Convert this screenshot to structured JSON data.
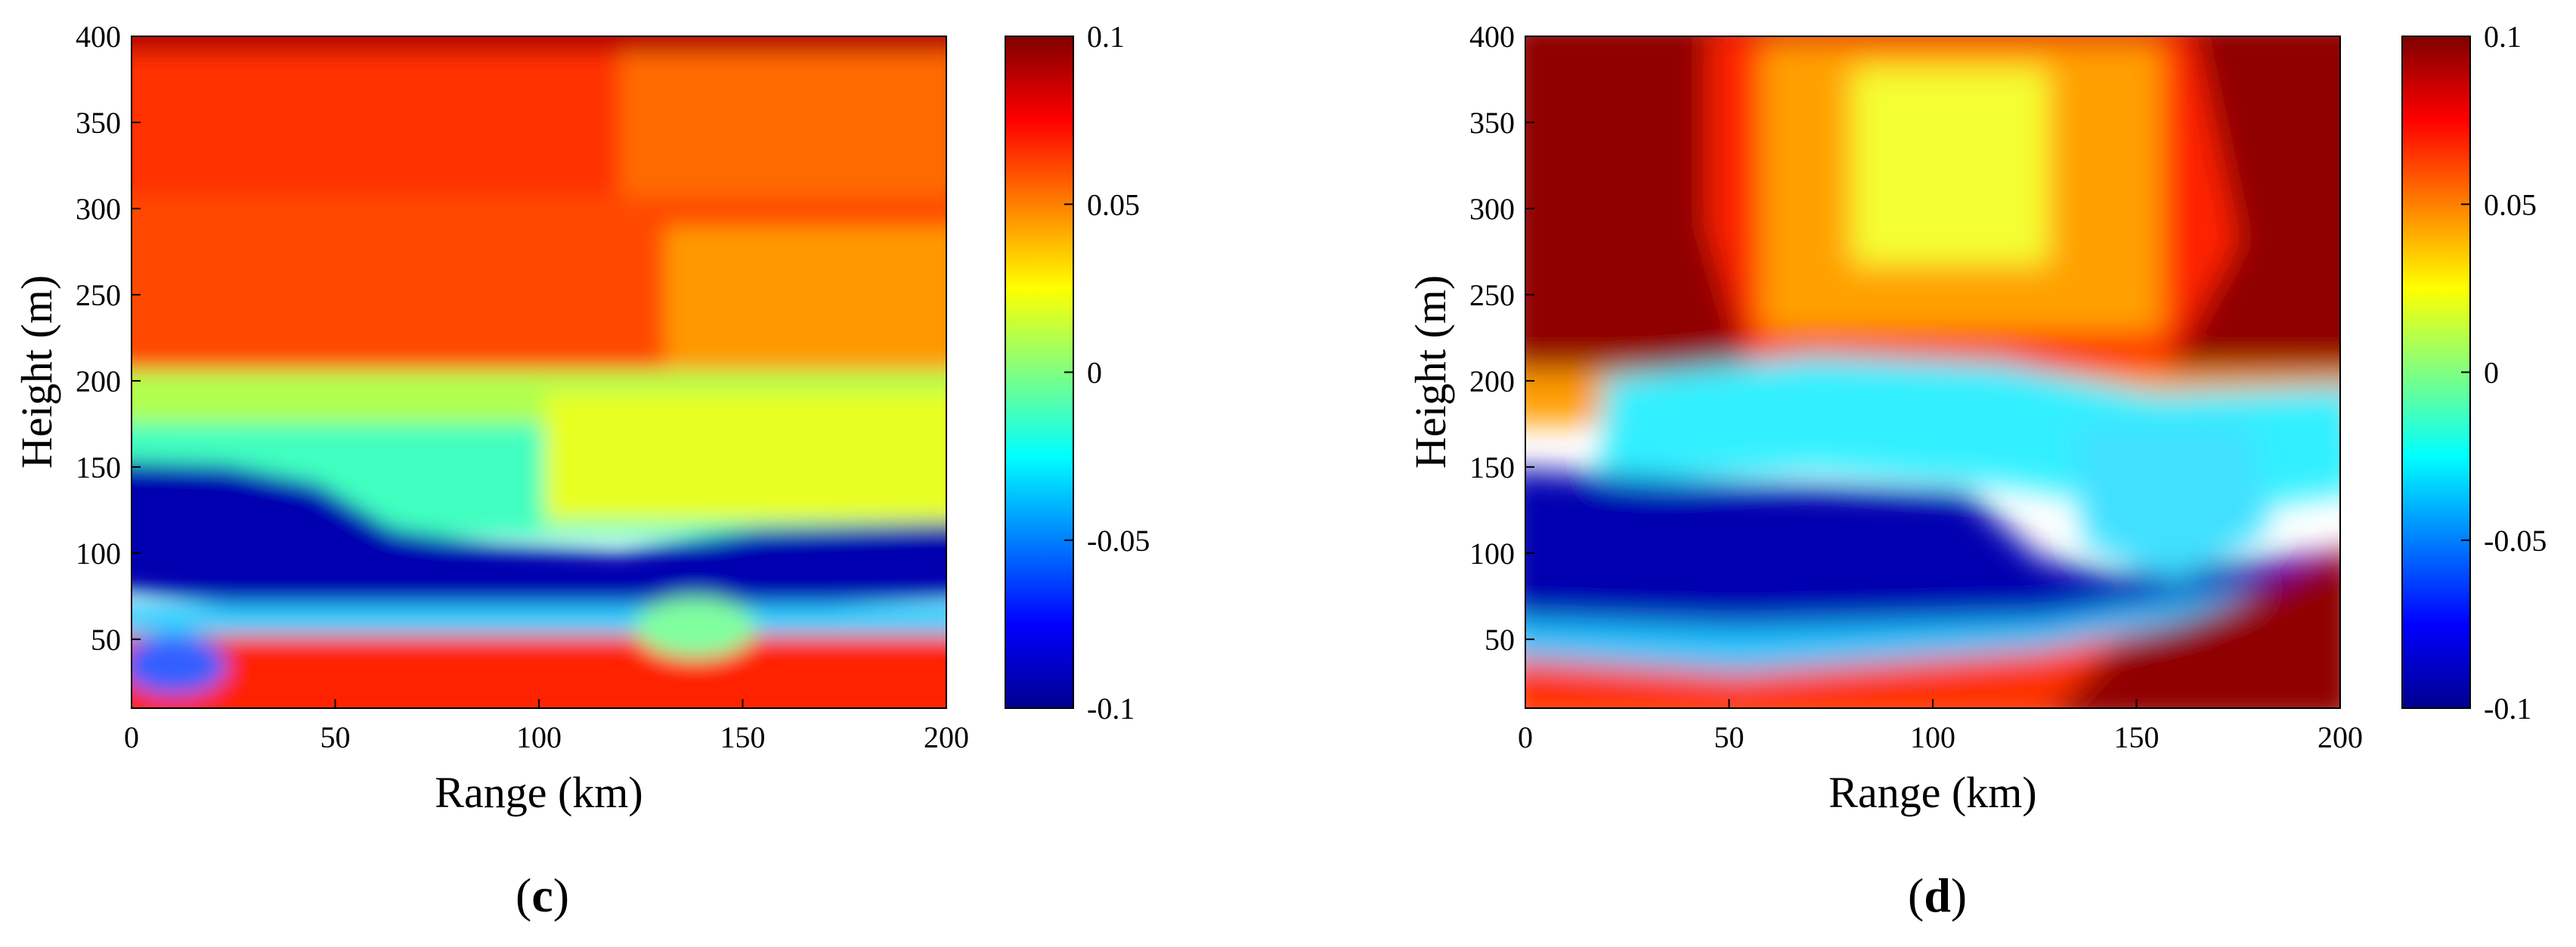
{
  "chart_data": [
    {
      "type": "heatmap",
      "panel_label": "c",
      "xlabel": "Range (km)",
      "ylabel": "Height (m)",
      "xlim": [
        0,
        200
      ],
      "ylim": [
        10,
        400
      ],
      "xticks": [
        "0",
        "50",
        "100",
        "150",
        "200"
      ],
      "yticks": [
        "50",
        "100",
        "150",
        "200",
        "250",
        "300",
        "350",
        "400"
      ],
      "colorbar": {
        "min": -0.1,
        "max": 0.1,
        "ticks": [
          "0.1",
          "0.05",
          "0",
          "-0.05",
          "-0.1"
        ],
        "colormap": "jet"
      },
      "bands": [
        {
          "height_range": [
            380,
            400
          ],
          "value": 0.09
        },
        {
          "height_range": [
            295,
            380
          ],
          "value": 0.07
        },
        {
          "height_range": [
            235,
            295
          ],
          "value": 0.06
        },
        {
          "height_range": [
            185,
            230
          ],
          "value": 0.02
        },
        {
          "height_range": [
            120,
            185
          ],
          "value": 0.005
        },
        {
          "height_range": [
            85,
            115
          ],
          "value": -0.1
        },
        {
          "height_range": [
            60,
            80
          ],
          "value": -0.01
        },
        {
          "height_range": [
            10,
            55
          ],
          "value": 0.09
        }
      ]
    },
    {
      "type": "heatmap",
      "panel_label": "d",
      "xlabel": "Range (km)",
      "ylabel": "Height (m)",
      "xlim": [
        0,
        200
      ],
      "ylim": [
        10,
        400
      ],
      "xticks": [
        "0",
        "50",
        "100",
        "150",
        "200"
      ],
      "yticks": [
        "50",
        "100",
        "150",
        "200",
        "250",
        "300",
        "350",
        "400"
      ],
      "colorbar": {
        "min": -0.1,
        "max": 0.1,
        "ticks": [
          "0.1",
          "0.05",
          "0",
          "-0.05",
          "-0.1"
        ],
        "colormap": "jet"
      },
      "bands": [
        {
          "height_range": [
            240,
            400
          ],
          "value": 0.1
        },
        {
          "height_range": [
            280,
            380
          ],
          "range_span": [
            120,
            170
          ],
          "value": 0.025
        },
        {
          "height_range": [
            180,
            235
          ],
          "value": 0.0
        },
        {
          "height_range": [
            100,
            170
          ],
          "value": -0.1
        },
        {
          "height_range": [
            50,
            80
          ],
          "value": -0.03
        },
        {
          "height_range": [
            10,
            60
          ],
          "value": 0.08
        },
        {
          "height_range": [
            10,
            90
          ],
          "range_span": [
            160,
            200
          ],
          "value": 0.1
        }
      ]
    }
  ]
}
